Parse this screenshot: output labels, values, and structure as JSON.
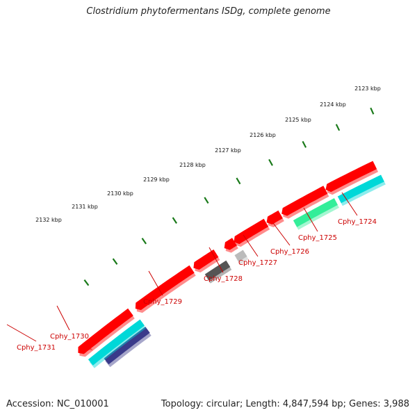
{
  "title": "Clostridium phytofermentans ISDg, complete genome",
  "footer": {
    "accession": "Accession: NC_010001",
    "summary": "Topology: circular; Length: 4,847,594 bp; Genes: 3,988"
  },
  "scale_labels": [
    "2123 kbp",
    "2124 kbp",
    "2125 kbp",
    "2126 kbp",
    "2127 kbp",
    "2128 kbp",
    "2129 kbp",
    "2130 kbp",
    "2131 kbp",
    "2132 kbp"
  ],
  "gene_labels": [
    "Cphy_1724",
    "Cphy_1725",
    "Cphy_1726",
    "Cphy_1727",
    "Cphy_1728",
    "Cphy_1729",
    "Cphy_1730",
    "Cphy_1731"
  ],
  "colors": {
    "backbone": "#808080",
    "cds": "#ff0000",
    "tick": "#1a7a1a",
    "label": "#cc0000",
    "cyan": "#00d8d8",
    "green": "#33ee99",
    "navy": "#3a3a8a",
    "dark_gray": "#555555",
    "light_gray": "#bbbbbb"
  }
}
